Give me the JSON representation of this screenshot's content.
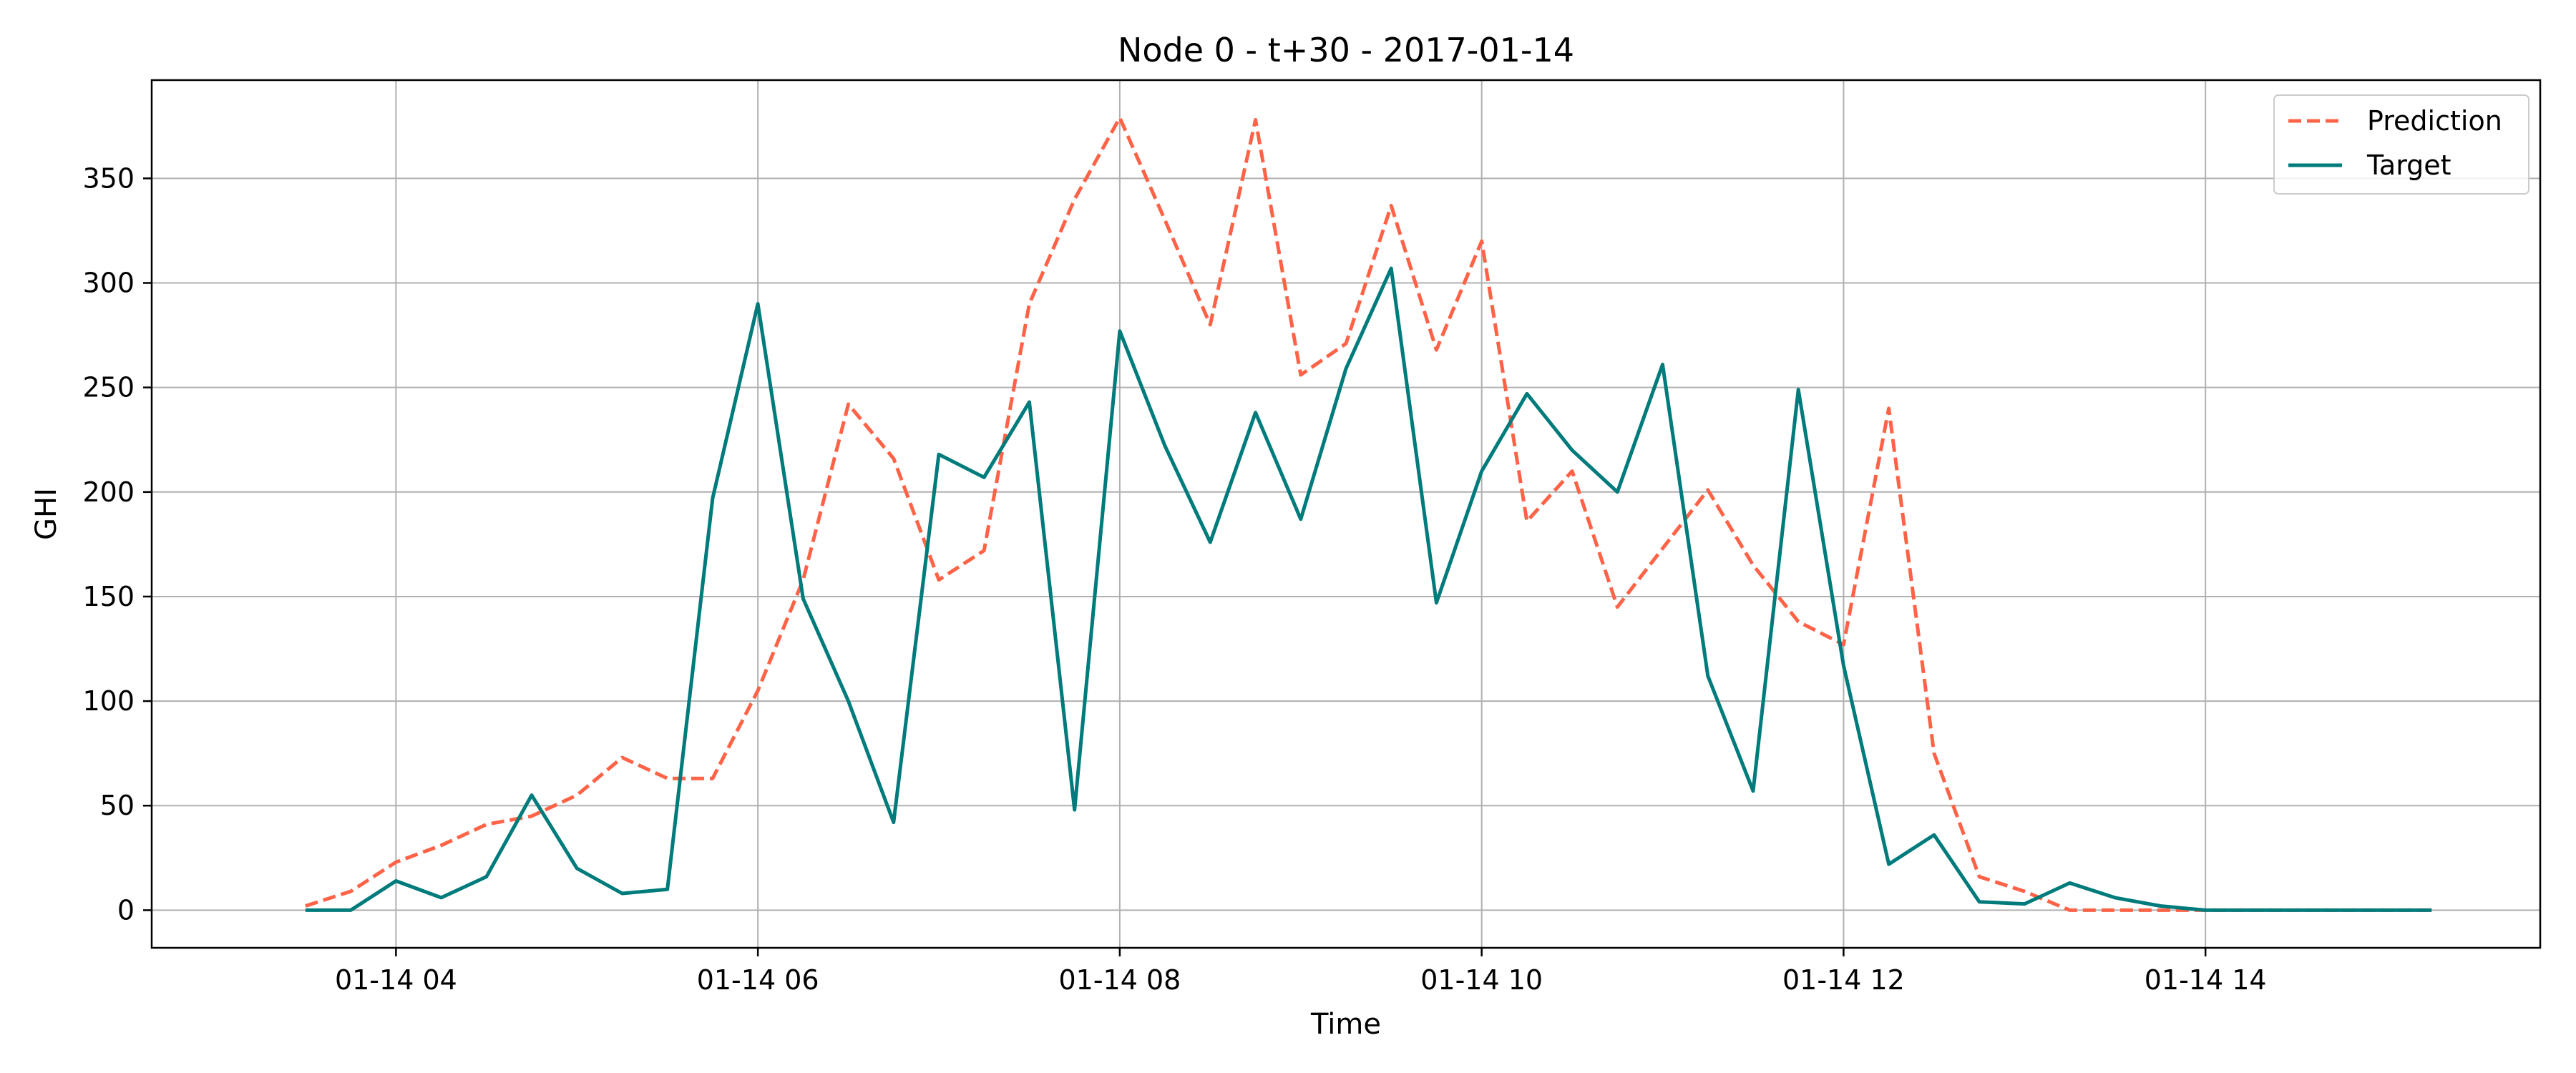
{
  "chart_data": {
    "type": "line",
    "title": "Node 0 - t+30 - 2017-01-14",
    "xlabel": "Time",
    "ylabel": "GHI",
    "x_start": "2017-01-14 03:30",
    "x_step_minutes": 15,
    "xlim": [
      "2017-01-14 02:39",
      "2017-01-14 15:51"
    ],
    "ylim": [
      -18,
      397
    ],
    "x_ticks": [
      {
        "time": "2017-01-14 04:00",
        "label": "01-14 04"
      },
      {
        "time": "2017-01-14 06:00",
        "label": "01-14 06"
      },
      {
        "time": "2017-01-14 08:00",
        "label": "01-14 08"
      },
      {
        "time": "2017-01-14 10:00",
        "label": "01-14 10"
      },
      {
        "time": "2017-01-14 12:00",
        "label": "01-14 12"
      },
      {
        "time": "2017-01-14 14:00",
        "label": "01-14 14"
      }
    ],
    "y_ticks": [
      0,
      50,
      100,
      150,
      200,
      250,
      300,
      350
    ],
    "grid": true,
    "legend_position": "top-right",
    "series": [
      {
        "name": "Prediction",
        "color": "#FF6347",
        "style": "dashed",
        "values": [
          2,
          9,
          23,
          31,
          41,
          45,
          55,
          73,
          63,
          63,
          105,
          158,
          242,
          216,
          158,
          172,
          290,
          340,
          379,
          330,
          280,
          378,
          256,
          271,
          337,
          268,
          320,
          186,
          210,
          145,
          173,
          201,
          165,
          138,
          127,
          240,
          75,
          16,
          9,
          0,
          0,
          0,
          0,
          0,
          0,
          0,
          0,
          0
        ]
      },
      {
        "name": "Target",
        "color": "#007B7B",
        "style": "solid",
        "values": [
          0,
          0,
          14,
          6,
          16,
          55,
          20,
          8,
          10,
          197,
          290,
          149,
          100,
          42,
          218,
          207,
          243,
          48,
          277,
          222,
          176,
          238,
          187,
          259,
          307,
          147,
          210,
          247,
          220,
          200,
          261,
          112,
          57,
          249,
          117,
          22,
          36,
          4,
          3,
          13,
          6,
          2,
          0,
          0,
          0,
          0,
          0,
          0
        ]
      }
    ]
  }
}
